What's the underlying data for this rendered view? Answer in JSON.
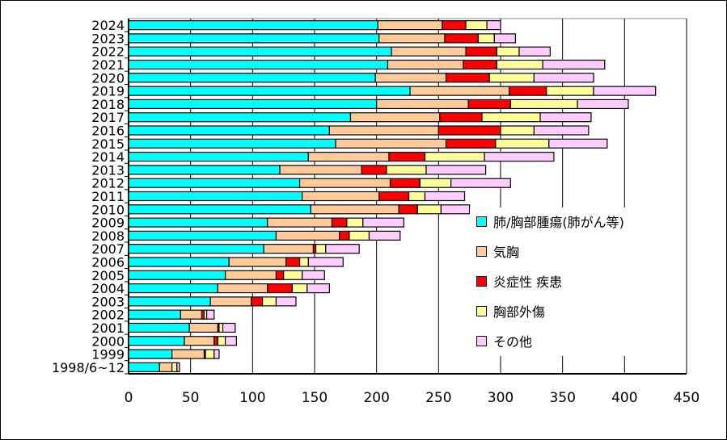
{
  "chart_data": {
    "type": "bar",
    "orientation": "horizontal",
    "stacked": true,
    "title": "",
    "xlabel": "",
    "ylabel": "",
    "xlim": [
      0,
      450
    ],
    "xticks": [
      0,
      50,
      100,
      150,
      200,
      250,
      300,
      350,
      400,
      450
    ],
    "grid": "vertical",
    "legend_placement": "lower-right (inside)",
    "categories": [
      "2024",
      "2023",
      "2022",
      "2021",
      "2020",
      "2019",
      "2018",
      "2017",
      "2016",
      "2015",
      "2014",
      "2013",
      "2012",
      "2011",
      "2010",
      "2009",
      "2008",
      "2007",
      "2006",
      "2005",
      "2004",
      "2003",
      "2002",
      "2001",
      "2000",
      "1999",
      "1998/6~12"
    ],
    "series": [
      {
        "name": "肺/胸部腫瘍(肺がん等)",
        "color": "#00FFFF",
        "values": [
          201,
          202,
          212,
          209,
          199,
          227,
          200,
          179,
          162,
          167,
          145,
          122,
          138,
          140,
          147,
          112,
          119,
          109,
          81,
          78,
          72,
          66,
          42,
          49,
          45,
          35,
          25
        ]
      },
      {
        "name": "気胸",
        "color": "#FFCC99",
        "values": [
          52,
          53,
          60,
          61,
          57,
          80,
          74,
          72,
          88,
          89,
          65,
          66,
          73,
          62,
          71,
          52,
          51,
          40,
          46,
          41,
          40,
          33,
          17,
          23,
          24,
          26,
          10
        ]
      },
      {
        "name": "炎症性 疾患",
        "color": "#FF0000",
        "values": [
          19,
          27,
          25,
          27,
          35,
          30,
          34,
          34,
          50,
          40,
          29,
          20,
          24,
          24,
          15,
          12,
          8,
          2,
          11,
          6,
          20,
          9,
          2,
          1,
          3,
          1,
          0
        ]
      },
      {
        "name": "胸部外傷",
        "color": "#FFFF99",
        "values": [
          17,
          13,
          18,
          37,
          36,
          38,
          54,
          47,
          27,
          43,
          48,
          32,
          25,
          13,
          19,
          13,
          16,
          8,
          7,
          15,
          12,
          11,
          2,
          3,
          6,
          7,
          4
        ]
      },
      {
        "name": "その他",
        "color": "#FFCCFF",
        "values": [
          11,
          17,
          25,
          50,
          48,
          50,
          41,
          41,
          44,
          47,
          56,
          48,
          48,
          32,
          23,
          33,
          25,
          27,
          28,
          18,
          18,
          16,
          6,
          10,
          9,
          4,
          2
        ]
      }
    ]
  }
}
